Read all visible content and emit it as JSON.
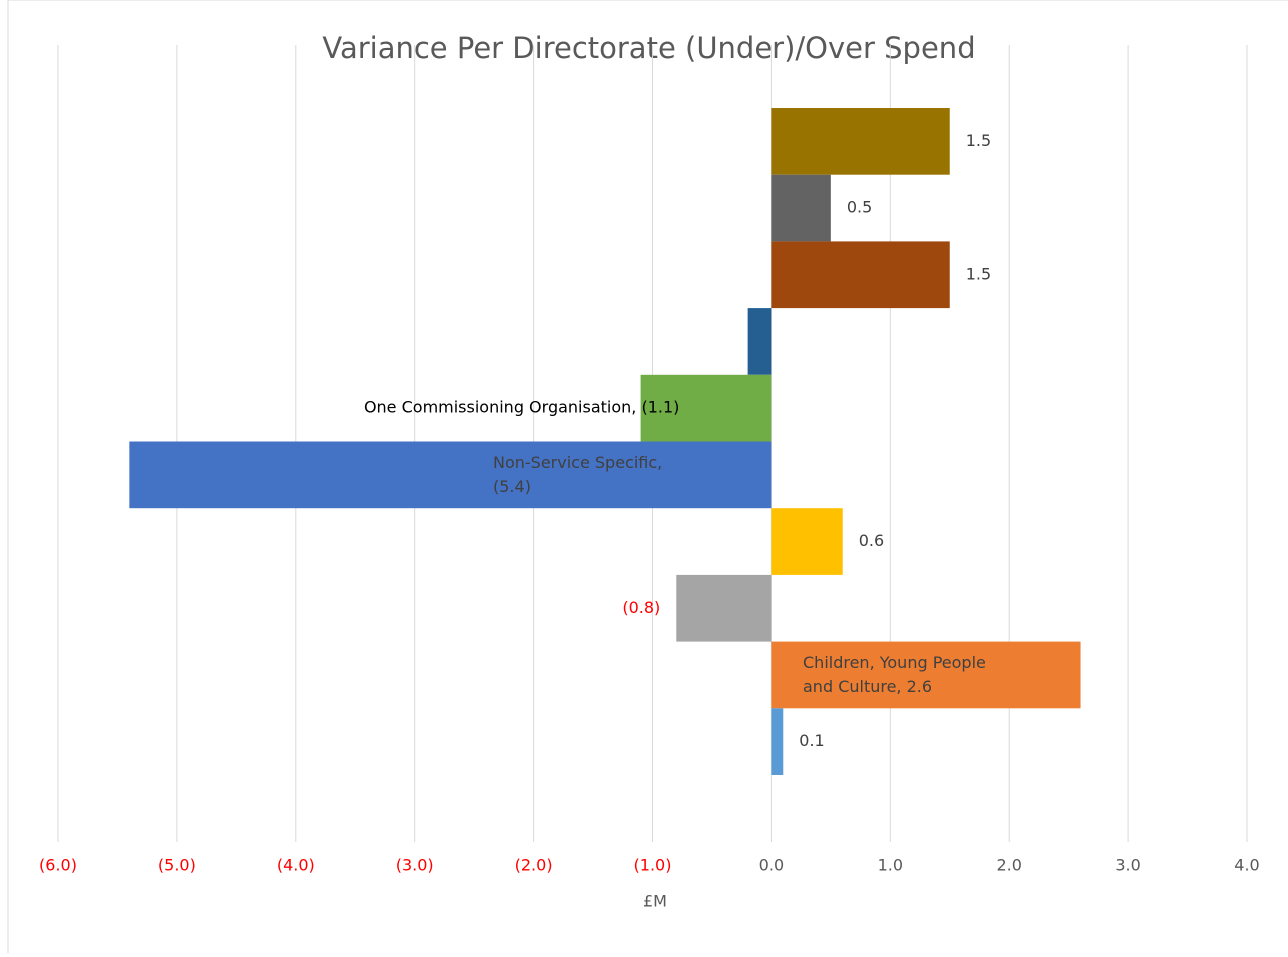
{
  "chart_data": {
    "type": "hbar",
    "title": "Variance Per Directorate (Under)/Over Spend",
    "x_label": "£M",
    "values": [
      1.5,
      0.5,
      1.5,
      -0.2,
      -1.1,
      -5.4,
      0.6,
      -0.8,
      2.6,
      0.1
    ],
    "value_labels": [
      "1.5",
      "0.5",
      "1.5",
      null,
      "One Commissioning Organisation, (1.1)",
      "Non-Service Specific, (5.4)",
      "0.6",
      "(0.8)",
      "Children, Young People and Culture, 2.6",
      "0.1"
    ],
    "value_label_colors": [
      "#404040",
      "#404040",
      "#404040",
      null,
      "#000000",
      "#404040",
      "#404040",
      "#ff0000",
      "#404040",
      "#404040"
    ],
    "colors": [
      "#997300",
      "#636363",
      "#9e480e",
      "#255e91",
      "#70ad47",
      "#4472c4",
      "#ffc000",
      "#a5a5a5",
      "#ed7d31",
      "#5b9bd5"
    ],
    "xlim": [
      -6,
      4
    ],
    "xticks": [
      {
        "value": -6,
        "label": "(6.0)"
      },
      {
        "value": -5,
        "label": "(5.0)"
      },
      {
        "value": -4,
        "label": "(4.0)"
      },
      {
        "value": -3,
        "label": "(3.0)"
      },
      {
        "value": -2,
        "label": "(2.0)"
      },
      {
        "value": -1,
        "label": "(1.0)"
      },
      {
        "value": 0,
        "label": "0.0"
      },
      {
        "value": 1,
        "label": "1.0"
      },
      {
        "value": 2,
        "label": "2.0"
      },
      {
        "value": 3,
        "label": "3.0"
      },
      {
        "value": 4,
        "label": "4.0"
      }
    ],
    "negative_tick_color": "#ff0000",
    "tick_color": "#595959",
    "grid": true
  }
}
